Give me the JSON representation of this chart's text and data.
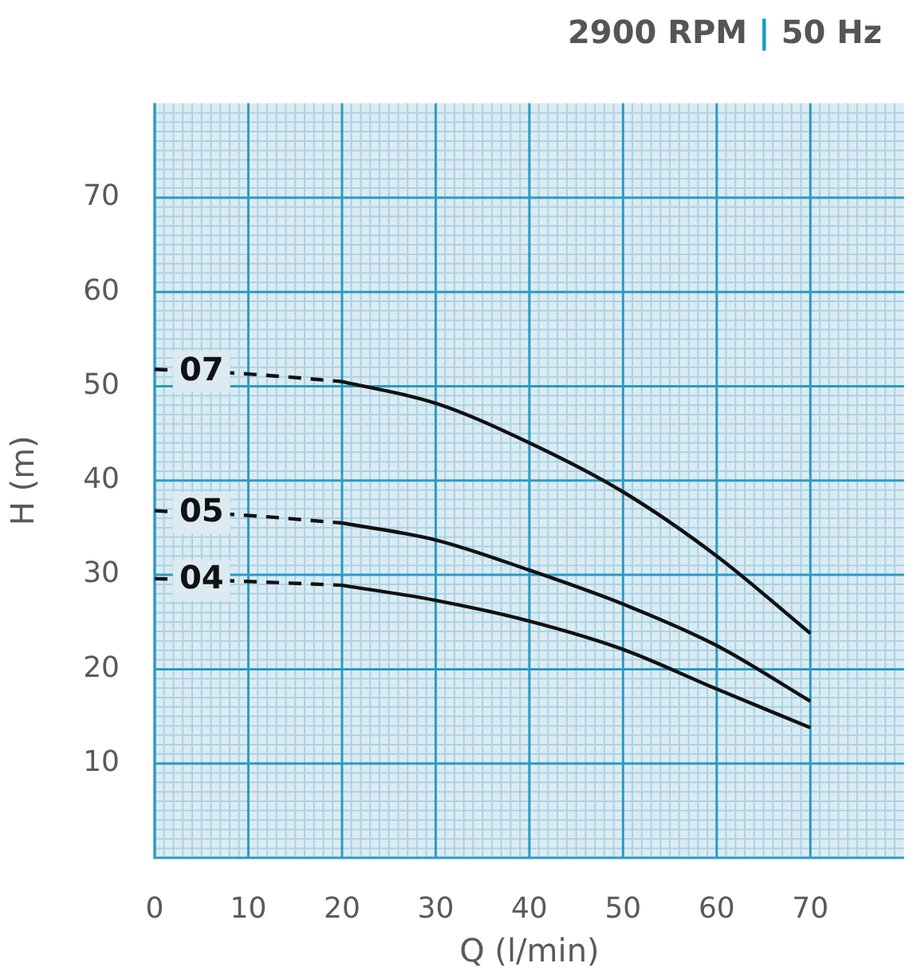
{
  "chart_data": {
    "type": "line",
    "title": "2900 RPM | 50 Hz",
    "xlabel": "Q (l/min)",
    "ylabel": "H (m)",
    "xlim": [
      0,
      80
    ],
    "ylim": [
      0,
      80
    ],
    "xticks": [
      0,
      {
        "value": 1,
        "label": null
      },
      {
        "value": 2,
        "label": null
      },
      {
        "value": 3,
        "label": null
      },
      {
        "value": 4,
        "label": null
      },
      {
        "value": 5,
        "label": null
      },
      {
        "value": 6,
        "label": null
      },
      {
        "value": 7,
        "label": null
      },
      {
        "value": 8,
        "label": null
      },
      {
        "value": 9,
        "label": null
      },
      10,
      {
        "value": 11,
        "label": null
      },
      {
        "value": 12,
        "label": null
      },
      {
        "value": 13,
        "label": null
      },
      {
        "value": 14,
        "label": null
      },
      {
        "value": 15,
        "label": null
      },
      {
        "value": 16,
        "label": null
      },
      {
        "value": 17,
        "label": null
      },
      {
        "value": 18,
        "label": null
      },
      {
        "value": 19,
        "label": null
      },
      20,
      {
        "value": 21,
        "label": null
      },
      {
        "value": 22,
        "label": null
      },
      {
        "value": 23,
        "label": null
      },
      {
        "value": 24,
        "label": null
      },
      {
        "value": 25,
        "label": null
      },
      {
        "value": 26,
        "label": null
      },
      {
        "value": 27,
        "label": null
      },
      {
        "value": 28,
        "label": null
      },
      {
        "value": 29,
        "label": null
      },
      30,
      {
        "value": 31,
        "label": null
      },
      {
        "value": 32,
        "label": null
      },
      {
        "value": 33,
        "label": null
      },
      {
        "value": 34,
        "label": null
      },
      {
        "value": 35,
        "label": null
      },
      {
        "value": 36,
        "label": null
      },
      {
        "value": 37,
        "label": null
      },
      {
        "value": 38,
        "label": null
      },
      {
        "value": 39,
        "label": null
      },
      40,
      {
        "value": 41,
        "label": null
      },
      {
        "value": 42,
        "label": null
      },
      {
        "value": 43,
        "label": null
      },
      {
        "value": 44,
        "label": null
      },
      {
        "value": 45,
        "label": null
      },
      {
        "value": 46,
        "label": null
      },
      {
        "value": 47,
        "label": null
      },
      {
        "value": 48,
        "label": null
      },
      {
        "value": 49,
        "label": null
      },
      50,
      {
        "value": 51,
        "label": null
      },
      {
        "value": 52,
        "label": null
      },
      {
        "value": 53,
        "label": null
      },
      {
        "value": 54,
        "label": null
      },
      {
        "value": 55,
        "label": null
      },
      {
        "value": 56,
        "label": null
      },
      {
        "value": 57,
        "label": null
      },
      {
        "value": 58,
        "label": null
      },
      {
        "value": 59,
        "label": null
      },
      60,
      {
        "value": 61,
        "label": null
      },
      {
        "value": 62,
        "label": null
      },
      {
        "value": 63,
        "label": null
      },
      {
        "value": 64,
        "label": null
      },
      {
        "value": 65,
        "label": null
      },
      {
        "value": 66,
        "label": null
      },
      {
        "value": 67,
        "label": null
      },
      {
        "value": 68,
        "label": null
      },
      {
        "value": 69,
        "label": null
      },
      70,
      {
        "value": 71,
        "label": null
      },
      {
        "value": 72,
        "label": null
      },
      {
        "value": 73,
        "label": null
      },
      {
        "value": 74,
        "label": null
      },
      {
        "value": 75,
        "label": null
      },
      {
        "value": 76,
        "label": null
      },
      {
        "value": 77,
        "label": null
      },
      {
        "value": 78,
        "label": null
      },
      {
        "value": 79,
        "label": null
      }
    ],
    "yticks": [
      {
        "value": 1,
        "label": null
      },
      {
        "value": 2,
        "label": null
      },
      {
        "value": 3,
        "label": null
      },
      {
        "value": 4,
        "label": null
      },
      {
        "value": 5,
        "label": null
      },
      {
        "value": 6,
        "label": null
      },
      {
        "value": 7,
        "label": null
      },
      {
        "value": 8,
        "label": null
      },
      {
        "value": 9,
        "label": null
      },
      10,
      {
        "value": 11,
        "label": null
      },
      {
        "value": 12,
        "label": null
      },
      {
        "value": 13,
        "label": null
      },
      {
        "value": 14,
        "label": null
      },
      {
        "value": 15,
        "label": null
      },
      {
        "value": 16,
        "label": null
      },
      {
        "value": 17,
        "label": null
      },
      {
        "value": 18,
        "label": null
      },
      {
        "value": 19,
        "label": null
      },
      20,
      {
        "value": 21,
        "label": null
      },
      {
        "value": 22,
        "label": null
      },
      {
        "value": 23,
        "label": null
      },
      {
        "value": 24,
        "label": null
      },
      {
        "value": 25,
        "label": null
      },
      {
        "value": 26,
        "label": null
      },
      {
        "value": 27,
        "label": null
      },
      {
        "value": 28,
        "label": null
      },
      {
        "value": 29,
        "label": null
      },
      30,
      {
        "value": 31,
        "label": null
      },
      {
        "value": 32,
        "label": null
      },
      {
        "value": 33,
        "label": null
      },
      {
        "value": 34,
        "label": null
      },
      {
        "value": 35,
        "label": null
      },
      {
        "value": 36,
        "label": null
      },
      {
        "value": 37,
        "label": null
      },
      {
        "value": 38,
        "label": null
      },
      {
        "value": 39,
        "label": null
      },
      40,
      {
        "value": 41,
        "label": null
      },
      {
        "value": 42,
        "label": null
      },
      {
        "value": 43,
        "label": null
      },
      {
        "value": 44,
        "label": null
      },
      {
        "value": 45,
        "label": null
      },
      {
        "value": 46,
        "label": null
      },
      {
        "value": 47,
        "label": null
      },
      {
        "value": 48,
        "label": null
      },
      {
        "value": 49,
        "label": null
      },
      50,
      {
        "value": 51,
        "label": null
      },
      {
        "value": 52,
        "label": null
      },
      {
        "value": 53,
        "label": null
      },
      {
        "value": 54,
        "label": null
      },
      {
        "value": 55,
        "label": null
      },
      {
        "value": 56,
        "label": null
      },
      {
        "value": 57,
        "label": null
      },
      {
        "value": 58,
        "label": null
      },
      {
        "value": 59,
        "label": null
      },
      60,
      {
        "value": 61,
        "label": null
      },
      {
        "value": 62,
        "label": null
      },
      {
        "value": 63,
        "label": null
      },
      {
        "value": 64,
        "label": null
      },
      {
        "value": 65,
        "label": null
      },
      {
        "value": 66,
        "label": null
      },
      {
        "value": 67,
        "label": null
      },
      {
        "value": 68,
        "label": null
      },
      {
        "value": 69,
        "label": null
      },
      70,
      {
        "value": 71,
        "label": null
      },
      {
        "value": 72,
        "label": null
      },
      {
        "value": 73,
        "label": null
      },
      {
        "value": 74,
        "label": null
      },
      {
        "value": 75,
        "label": null
      },
      {
        "value": 76,
        "label": null
      },
      {
        "value": 77,
        "label": null
      },
      {
        "value": 78,
        "label": null
      },
      {
        "value": 79,
        "label": null
      }
    ],
    "grid": true,
    "legend": false,
    "marker": "none",
    "series": [
      {
        "name": "07",
        "color": "#111111",
        "line_style": "dashed",
        "x": [
          0,
          10,
          20
        ],
        "values": [
          51.8,
          51.3,
          50.5
        ]
      },
      {
        "color": "#111111",
        "line_style": "solid",
        "x": [
          20,
          30,
          40,
          50,
          60,
          70
        ],
        "values": [
          50.5,
          48.2,
          44,
          38.8,
          32,
          23.8
        ]
      },
      {
        "name": "05",
        "color": "#111111",
        "line_style": "dashed",
        "x": [
          0,
          10,
          20
        ],
        "values": [
          36.8,
          36.3,
          35.5
        ]
      },
      {
        "color": "#111111",
        "line_style": "solid",
        "x": [
          20,
          30,
          40,
          50,
          60,
          70
        ],
        "values": [
          35.5,
          33.7,
          30.5,
          26.9,
          22.5,
          16.6
        ]
      },
      {
        "name": "04",
        "color": "#111111",
        "line_style": "dashed",
        "x": [
          0,
          10,
          20
        ],
        "values": [
          29.6,
          29.3,
          28.9
        ]
      },
      {
        "color": "#111111",
        "line_style": "solid",
        "x": [
          20,
          30,
          40,
          50,
          60,
          70
        ],
        "values": [
          28.9,
          27.3,
          25.1,
          22.1,
          17.9,
          13.8
        ]
      }
    ]
  }
}
